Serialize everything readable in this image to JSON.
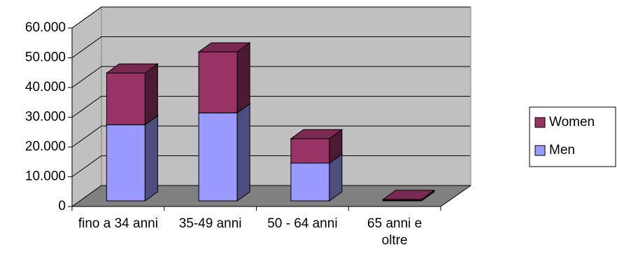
{
  "chart_data": {
    "type": "bar3d-stacked",
    "categories": [
      "fino a 34 anni",
      "35-49 anni",
      "50 - 64 anni",
      "65 anni e oltre"
    ],
    "series": [
      {
        "name": "Men",
        "color": "#9999ff",
        "values": [
          25600,
          29600,
          12700,
          200
        ]
      },
      {
        "name": "Women",
        "color": "#993366",
        "values": [
          17400,
          20500,
          8200,
          300
        ]
      }
    ],
    "ylim": [
      0,
      60000
    ],
    "yticks": [
      0,
      {
        "value": 10000,
        "label": "10.000"
      },
      {
        "value": 20000,
        "label": "20.000"
      },
      {
        "value": 30000,
        "label": "30.000"
      },
      {
        "value": 40000,
        "label": "40.000"
      },
      {
        "value": 50000,
        "label": "50.000"
      },
      {
        "value": 60000,
        "label": "60.000"
      }
    ],
    "grid": true
  }
}
